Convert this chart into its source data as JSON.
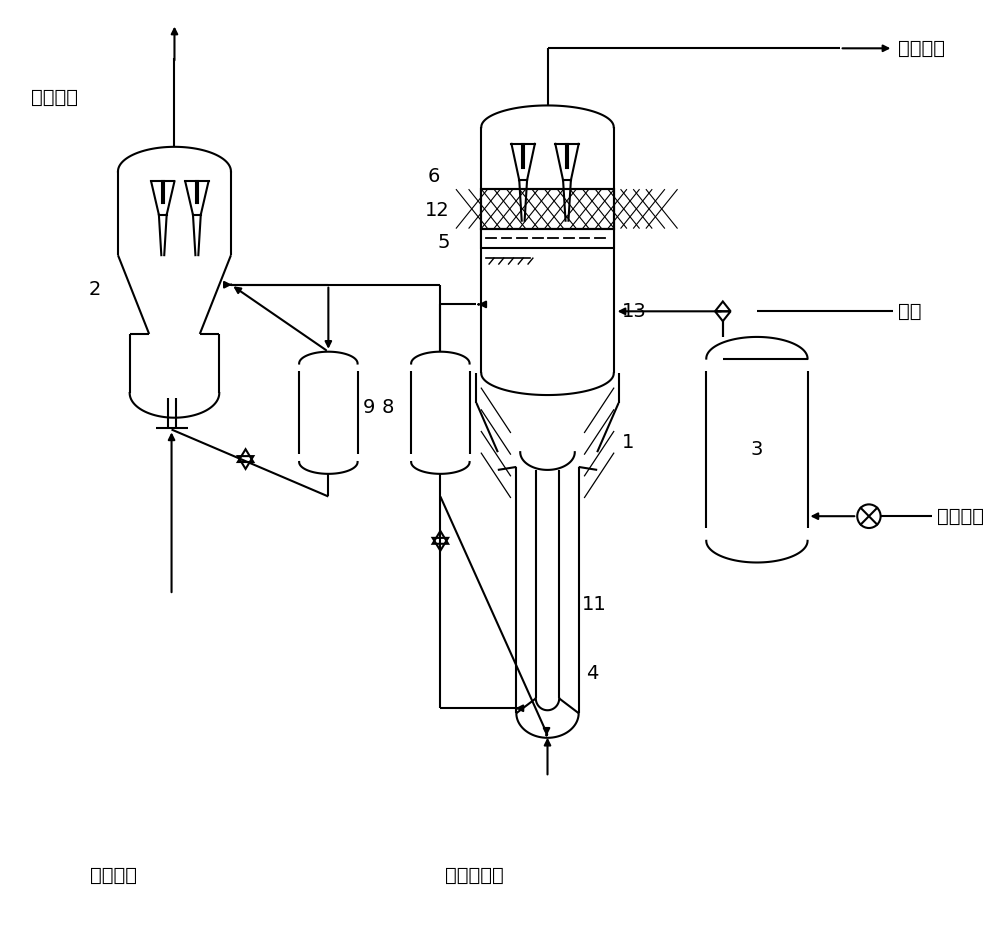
{
  "bg_color": "#ffffff",
  "lc": "#000000",
  "lw": 1.5,
  "labels": {
    "zaisheng_yanqi": "再生烟气",
    "jinghua_yanqi": "净化烟气",
    "kongqi": "空气",
    "huanyuan_qiti": "还原气体",
    "zaisheng_yongqi": "再生用气",
    "daijinghua_yanqi": "待净化烟气",
    "n1": "1",
    "n2": "2",
    "n3": "3",
    "n4": "4",
    "n5": "5",
    "n6": "6",
    "n8": "8",
    "n9": "9",
    "n11": "11",
    "n12": "12",
    "n13": "13"
  },
  "fontsize": 14
}
